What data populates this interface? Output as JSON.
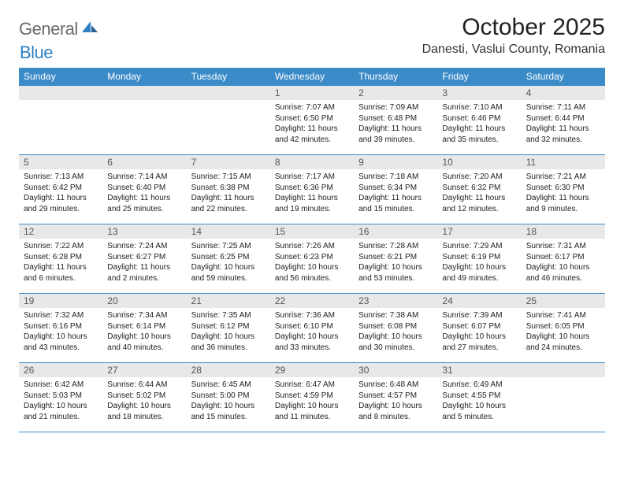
{
  "brand": {
    "name_gray": "General",
    "name_blue": "Blue"
  },
  "title": "October 2025",
  "location": "Danesti, Vaslui County, Romania",
  "colors": {
    "header_bg": "#3b8bc9",
    "header_text": "#ffffff",
    "daynum_bg": "#e8e8e8",
    "row_border": "#3b8bc9",
    "logo_gray": "#6b6b6b",
    "logo_blue": "#2f7fc1",
    "body_text": "#222222"
  },
  "days_of_week": [
    "Sunday",
    "Monday",
    "Tuesday",
    "Wednesday",
    "Thursday",
    "Friday",
    "Saturday"
  ],
  "weeks": [
    [
      {
        "n": "",
        "sr": "",
        "ss": "",
        "dl": ""
      },
      {
        "n": "",
        "sr": "",
        "ss": "",
        "dl": ""
      },
      {
        "n": "",
        "sr": "",
        "ss": "",
        "dl": ""
      },
      {
        "n": "1",
        "sr": "7:07 AM",
        "ss": "6:50 PM",
        "dl": "11 hours and 42 minutes."
      },
      {
        "n": "2",
        "sr": "7:09 AM",
        "ss": "6:48 PM",
        "dl": "11 hours and 39 minutes."
      },
      {
        "n": "3",
        "sr": "7:10 AM",
        "ss": "6:46 PM",
        "dl": "11 hours and 35 minutes."
      },
      {
        "n": "4",
        "sr": "7:11 AM",
        "ss": "6:44 PM",
        "dl": "11 hours and 32 minutes."
      }
    ],
    [
      {
        "n": "5",
        "sr": "7:13 AM",
        "ss": "6:42 PM",
        "dl": "11 hours and 29 minutes."
      },
      {
        "n": "6",
        "sr": "7:14 AM",
        "ss": "6:40 PM",
        "dl": "11 hours and 25 minutes."
      },
      {
        "n": "7",
        "sr": "7:15 AM",
        "ss": "6:38 PM",
        "dl": "11 hours and 22 minutes."
      },
      {
        "n": "8",
        "sr": "7:17 AM",
        "ss": "6:36 PM",
        "dl": "11 hours and 19 minutes."
      },
      {
        "n": "9",
        "sr": "7:18 AM",
        "ss": "6:34 PM",
        "dl": "11 hours and 15 minutes."
      },
      {
        "n": "10",
        "sr": "7:20 AM",
        "ss": "6:32 PM",
        "dl": "11 hours and 12 minutes."
      },
      {
        "n": "11",
        "sr": "7:21 AM",
        "ss": "6:30 PM",
        "dl": "11 hours and 9 minutes."
      }
    ],
    [
      {
        "n": "12",
        "sr": "7:22 AM",
        "ss": "6:28 PM",
        "dl": "11 hours and 6 minutes."
      },
      {
        "n": "13",
        "sr": "7:24 AM",
        "ss": "6:27 PM",
        "dl": "11 hours and 2 minutes."
      },
      {
        "n": "14",
        "sr": "7:25 AM",
        "ss": "6:25 PM",
        "dl": "10 hours and 59 minutes."
      },
      {
        "n": "15",
        "sr": "7:26 AM",
        "ss": "6:23 PM",
        "dl": "10 hours and 56 minutes."
      },
      {
        "n": "16",
        "sr": "7:28 AM",
        "ss": "6:21 PM",
        "dl": "10 hours and 53 minutes."
      },
      {
        "n": "17",
        "sr": "7:29 AM",
        "ss": "6:19 PM",
        "dl": "10 hours and 49 minutes."
      },
      {
        "n": "18",
        "sr": "7:31 AM",
        "ss": "6:17 PM",
        "dl": "10 hours and 46 minutes."
      }
    ],
    [
      {
        "n": "19",
        "sr": "7:32 AM",
        "ss": "6:16 PM",
        "dl": "10 hours and 43 minutes."
      },
      {
        "n": "20",
        "sr": "7:34 AM",
        "ss": "6:14 PM",
        "dl": "10 hours and 40 minutes."
      },
      {
        "n": "21",
        "sr": "7:35 AM",
        "ss": "6:12 PM",
        "dl": "10 hours and 36 minutes."
      },
      {
        "n": "22",
        "sr": "7:36 AM",
        "ss": "6:10 PM",
        "dl": "10 hours and 33 minutes."
      },
      {
        "n": "23",
        "sr": "7:38 AM",
        "ss": "6:08 PM",
        "dl": "10 hours and 30 minutes."
      },
      {
        "n": "24",
        "sr": "7:39 AM",
        "ss": "6:07 PM",
        "dl": "10 hours and 27 minutes."
      },
      {
        "n": "25",
        "sr": "7:41 AM",
        "ss": "6:05 PM",
        "dl": "10 hours and 24 minutes."
      }
    ],
    [
      {
        "n": "26",
        "sr": "6:42 AM",
        "ss": "5:03 PM",
        "dl": "10 hours and 21 minutes."
      },
      {
        "n": "27",
        "sr": "6:44 AM",
        "ss": "5:02 PM",
        "dl": "10 hours and 18 minutes."
      },
      {
        "n": "28",
        "sr": "6:45 AM",
        "ss": "5:00 PM",
        "dl": "10 hours and 15 minutes."
      },
      {
        "n": "29",
        "sr": "6:47 AM",
        "ss": "4:59 PM",
        "dl": "10 hours and 11 minutes."
      },
      {
        "n": "30",
        "sr": "6:48 AM",
        "ss": "4:57 PM",
        "dl": "10 hours and 8 minutes."
      },
      {
        "n": "31",
        "sr": "6:49 AM",
        "ss": "4:55 PM",
        "dl": "10 hours and 5 minutes."
      },
      {
        "n": "",
        "sr": "",
        "ss": "",
        "dl": ""
      }
    ]
  ],
  "labels": {
    "sunrise": "Sunrise: ",
    "sunset": "Sunset: ",
    "daylight": "Daylight: "
  }
}
